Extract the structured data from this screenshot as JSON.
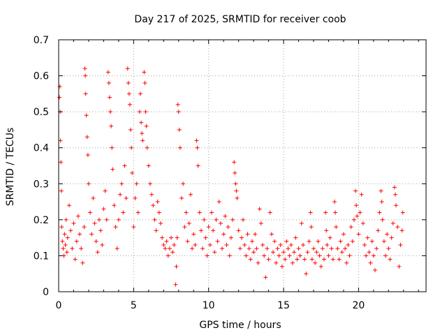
{
  "chart_data": {
    "type": "scatter",
    "title": "Day 217 of 2025, SRMTID for receiver coob",
    "xlabel": "GPS time / hours",
    "ylabel": "SRMTID / TECUs",
    "xlim": [
      0,
      24.5
    ],
    "ylim": [
      0,
      0.7
    ],
    "x_ticks": [
      0,
      5,
      10,
      15,
      20
    ],
    "x_tick_labels": [
      "0",
      "5",
      "10",
      "15",
      "20"
    ],
    "y_ticks": [
      0,
      0.1,
      0.2,
      0.3,
      0.4,
      0.5,
      0.6,
      0.7
    ],
    "y_tick_labels": [
      "0",
      "0.1",
      "0.2",
      "0.3",
      "0.4",
      "0.5",
      "0.6",
      "0.7"
    ],
    "grid": true,
    "marker": "+",
    "series": [
      {
        "name": "SRMTID",
        "color": "#ff0000",
        "points": [
          [
            0.05,
            0.54
          ],
          [
            0.08,
            0.57
          ],
          [
            0.1,
            0.5
          ],
          [
            0.12,
            0.42
          ],
          [
            0.15,
            0.36
          ],
          [
            0.18,
            0.28
          ],
          [
            0.2,
            0.18
          ],
          [
            0.25,
            0.14
          ],
          [
            0.3,
            0.12
          ],
          [
            0.35,
            0.1
          ],
          [
            0.4,
            0.16
          ],
          [
            0.45,
            0.13
          ],
          [
            0.5,
            0.2
          ],
          [
            0.55,
            0.11
          ],
          [
            0.6,
            0.15
          ],
          [
            0.7,
            0.24
          ],
          [
            0.8,
            0.17
          ],
          [
            0.9,
            0.12
          ],
          [
            1.0,
            0.19
          ],
          [
            1.1,
            0.09
          ],
          [
            1.2,
            0.14
          ],
          [
            1.3,
            0.21
          ],
          [
            1.4,
            0.16
          ],
          [
            1.5,
            0.12
          ],
          [
            1.6,
            0.08
          ],
          [
            1.7,
            0.18
          ],
          [
            1.75,
            0.62
          ],
          [
            1.78,
            0.6
          ],
          [
            1.8,
            0.55
          ],
          [
            1.85,
            0.49
          ],
          [
            1.9,
            0.43
          ],
          [
            1.95,
            0.38
          ],
          [
            2.0,
            0.3
          ],
          [
            2.1,
            0.22
          ],
          [
            2.2,
            0.16
          ],
          [
            2.3,
            0.26
          ],
          [
            2.4,
            0.19
          ],
          [
            2.5,
            0.14
          ],
          [
            2.6,
            0.11
          ],
          [
            2.7,
            0.2
          ],
          [
            2.8,
            0.17
          ],
          [
            2.9,
            0.13
          ],
          [
            3.0,
            0.23
          ],
          [
            3.1,
            0.28
          ],
          [
            3.2,
            0.2
          ],
          [
            3.3,
            0.61
          ],
          [
            3.35,
            0.58
          ],
          [
            3.4,
            0.54
          ],
          [
            3.45,
            0.5
          ],
          [
            3.5,
            0.46
          ],
          [
            3.55,
            0.4
          ],
          [
            3.6,
            0.34
          ],
          [
            3.7,
            0.24
          ],
          [
            3.8,
            0.18
          ],
          [
            3.9,
            0.12
          ],
          [
            4.0,
            0.2
          ],
          [
            4.1,
            0.27
          ],
          [
            4.2,
            0.3
          ],
          [
            4.3,
            0.22
          ],
          [
            4.4,
            0.35
          ],
          [
            4.5,
            0.26
          ],
          [
            4.6,
            0.62
          ],
          [
            4.65,
            0.58
          ],
          [
            4.7,
            0.55
          ],
          [
            4.75,
            0.52
          ],
          [
            4.8,
            0.45
          ],
          [
            4.85,
            0.4
          ],
          [
            4.9,
            0.33
          ],
          [
            5.0,
            0.18
          ],
          [
            5.1,
            0.26
          ],
          [
            5.2,
            0.3
          ],
          [
            5.3,
            0.22
          ],
          [
            5.4,
            0.5
          ],
          [
            5.45,
            0.55
          ],
          [
            5.5,
            0.47
          ],
          [
            5.55,
            0.44
          ],
          [
            5.6,
            0.42
          ],
          [
            5.7,
            0.61
          ],
          [
            5.75,
            0.58
          ],
          [
            5.8,
            0.5
          ],
          [
            5.85,
            0.46
          ],
          [
            5.9,
            0.4
          ],
          [
            6.0,
            0.35
          ],
          [
            6.1,
            0.3
          ],
          [
            6.2,
            0.27
          ],
          [
            6.3,
            0.24
          ],
          [
            6.4,
            0.2
          ],
          [
            6.5,
            0.17
          ],
          [
            6.6,
            0.25
          ],
          [
            6.7,
            0.22
          ],
          [
            6.8,
            0.19
          ],
          [
            6.9,
            0.15
          ],
          [
            7.0,
            0.13
          ],
          [
            7.1,
            0.12
          ],
          [
            7.2,
            0.14
          ],
          [
            7.3,
            0.1
          ],
          [
            7.4,
            0.12
          ],
          [
            7.5,
            0.15
          ],
          [
            7.6,
            0.11
          ],
          [
            7.7,
            0.13
          ],
          [
            7.8,
            0.02
          ],
          [
            7.85,
            0.07
          ],
          [
            7.9,
            0.15
          ],
          [
            7.95,
            0.52
          ],
          [
            8.0,
            0.5
          ],
          [
            8.05,
            0.45
          ],
          [
            8.1,
            0.4
          ],
          [
            8.2,
            0.26
          ],
          [
            8.3,
            0.3
          ],
          [
            8.4,
            0.18
          ],
          [
            8.5,
            0.22
          ],
          [
            8.6,
            0.14
          ],
          [
            8.7,
            0.19
          ],
          [
            8.8,
            0.27
          ],
          [
            8.9,
            0.12
          ],
          [
            9.0,
            0.16
          ],
          [
            9.1,
            0.13
          ],
          [
            9.2,
            0.42
          ],
          [
            9.25,
            0.4
          ],
          [
            9.3,
            0.35
          ],
          [
            9.4,
            0.22
          ],
          [
            9.5,
            0.17
          ],
          [
            9.6,
            0.12
          ],
          [
            9.7,
            0.2
          ],
          [
            9.8,
            0.15
          ],
          [
            9.9,
            0.1
          ],
          [
            10.0,
            0.18
          ],
          [
            10.1,
            0.13
          ],
          [
            10.2,
            0.22
          ],
          [
            10.3,
            0.17
          ],
          [
            10.4,
            0.11
          ],
          [
            10.5,
            0.2
          ],
          [
            10.6,
            0.14
          ],
          [
            10.7,
            0.25
          ],
          [
            10.8,
            0.19
          ],
          [
            10.9,
            0.12
          ],
          [
            11.0,
            0.16
          ],
          [
            11.1,
            0.21
          ],
          [
            11.2,
            0.13
          ],
          [
            11.3,
            0.18
          ],
          [
            11.4,
            0.1
          ],
          [
            11.5,
            0.15
          ],
          [
            11.6,
            0.2
          ],
          [
            11.7,
            0.36
          ],
          [
            11.75,
            0.33
          ],
          [
            11.8,
            0.3
          ],
          [
            11.85,
            0.28
          ],
          [
            11.9,
            0.26
          ],
          [
            12.0,
            0.17
          ],
          [
            12.1,
            0.12
          ],
          [
            12.2,
            0.15
          ],
          [
            12.3,
            0.2
          ],
          [
            12.4,
            0.13
          ],
          [
            12.5,
            0.1
          ],
          [
            12.6,
            0.16
          ],
          [
            12.7,
            0.12
          ],
          [
            12.8,
            0.09
          ],
          [
            12.9,
            0.14
          ],
          [
            13.0,
            0.11
          ],
          [
            13.1,
            0.16
          ],
          [
            13.2,
            0.12
          ],
          [
            13.3,
            0.08
          ],
          [
            13.4,
            0.23
          ],
          [
            13.5,
            0.19
          ],
          [
            13.6,
            0.13
          ],
          [
            13.7,
            0.1
          ],
          [
            13.8,
            0.04
          ],
          [
            13.9,
            0.12
          ],
          [
            14.0,
            0.09
          ],
          [
            14.1,
            0.22
          ],
          [
            14.2,
            0.16
          ],
          [
            14.3,
            0.11
          ],
          [
            14.4,
            0.14
          ],
          [
            14.5,
            0.08
          ],
          [
            14.6,
            0.12
          ],
          [
            14.7,
            0.1
          ],
          [
            14.8,
            0.13
          ],
          [
            14.9,
            0.07
          ],
          [
            15.0,
            0.11
          ],
          [
            15.1,
            0.09
          ],
          [
            15.2,
            0.14
          ],
          [
            15.3,
            0.12
          ],
          [
            15.4,
            0.1
          ],
          [
            15.5,
            0.13
          ],
          [
            15.6,
            0.08
          ],
          [
            15.7,
            0.11
          ],
          [
            15.8,
            0.15
          ],
          [
            15.9,
            0.09
          ],
          [
            16.0,
            0.12
          ],
          [
            16.1,
            0.1
          ],
          [
            16.2,
            0.19
          ],
          [
            16.3,
            0.13
          ],
          [
            16.4,
            0.09
          ],
          [
            16.5,
            0.05
          ],
          [
            16.6,
            0.11
          ],
          [
            16.7,
            0.14
          ],
          [
            16.8,
            0.22
          ],
          [
            16.85,
            0.18
          ],
          [
            16.9,
            0.09
          ],
          [
            17.0,
            0.12
          ],
          [
            17.1,
            0.08
          ],
          [
            17.2,
            0.11
          ],
          [
            17.3,
            0.14
          ],
          [
            17.4,
            0.1
          ],
          [
            17.5,
            0.07
          ],
          [
            17.6,
            0.12
          ],
          [
            17.7,
            0.09
          ],
          [
            17.8,
            0.22
          ],
          [
            17.85,
            0.17
          ],
          [
            17.9,
            0.13
          ],
          [
            18.0,
            0.1
          ],
          [
            18.1,
            0.15
          ],
          [
            18.2,
            0.12
          ],
          [
            18.3,
            0.09
          ],
          [
            18.4,
            0.25
          ],
          [
            18.45,
            0.22
          ],
          [
            18.5,
            0.18
          ],
          [
            18.6,
            0.12
          ],
          [
            18.7,
            0.09
          ],
          [
            18.8,
            0.14
          ],
          [
            18.9,
            0.11
          ],
          [
            19.0,
            0.16
          ],
          [
            19.1,
            0.12
          ],
          [
            19.2,
            0.08
          ],
          [
            19.3,
            0.13
          ],
          [
            19.4,
            0.1
          ],
          [
            19.5,
            0.18
          ],
          [
            19.6,
            0.14
          ],
          [
            19.7,
            0.2
          ],
          [
            19.8,
            0.28
          ],
          [
            19.85,
            0.24
          ],
          [
            19.9,
            0.21
          ],
          [
            20.0,
            0.16
          ],
          [
            20.1,
            0.22
          ],
          [
            20.2,
            0.27
          ],
          [
            20.3,
            0.19
          ],
          [
            20.4,
            0.13
          ],
          [
            20.5,
            0.1
          ],
          [
            20.6,
            0.15
          ],
          [
            20.7,
            0.11
          ],
          [
            20.8,
            0.08
          ],
          [
            20.9,
            0.14
          ],
          [
            21.0,
            0.1
          ],
          [
            21.1,
            0.06
          ],
          [
            21.2,
            0.12
          ],
          [
            21.3,
            0.17
          ],
          [
            21.4,
            0.22
          ],
          [
            21.5,
            0.28
          ],
          [
            21.55,
            0.25
          ],
          [
            21.6,
            0.2
          ],
          [
            21.7,
            0.14
          ],
          [
            21.8,
            0.1
          ],
          [
            21.9,
            0.16
          ],
          [
            22.0,
            0.12
          ],
          [
            22.1,
            0.09
          ],
          [
            22.2,
            0.15
          ],
          [
            22.3,
            0.19
          ],
          [
            22.4,
            0.29
          ],
          [
            22.45,
            0.27
          ],
          [
            22.5,
            0.24
          ],
          [
            22.6,
            0.18
          ],
          [
            22.7,
            0.07
          ],
          [
            22.8,
            0.13
          ],
          [
            22.9,
            0.17
          ],
          [
            22.95,
            0.22
          ]
        ]
      }
    ]
  }
}
